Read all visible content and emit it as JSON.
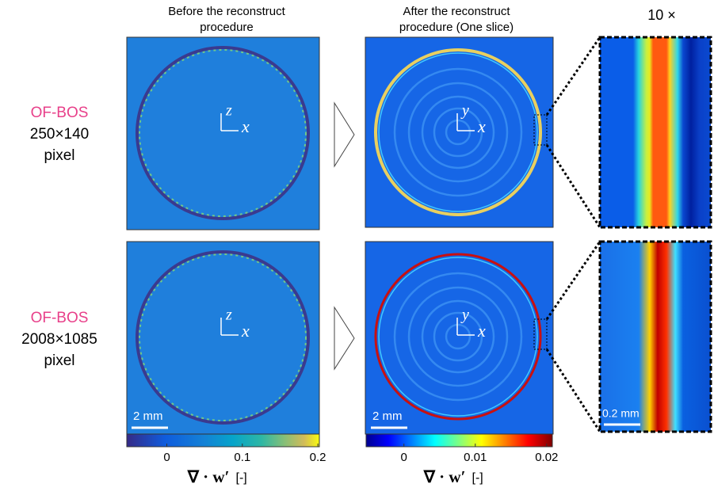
{
  "header": {
    "columns": [
      [
        "Before the reconstruct",
        "procedure"
      ],
      [
        "After the reconstruct",
        "procedure (One slice)"
      ]
    ],
    "zoom": "10 ×"
  },
  "rows": [
    {
      "method": "OF-BOS",
      "resolution": "250×140",
      "unit": "pixel"
    },
    {
      "method": "OF-BOS",
      "resolution": "2008×1085",
      "unit": "pixel"
    }
  ],
  "axes": {
    "before": [
      "z",
      "x"
    ],
    "after": [
      "y",
      "x"
    ]
  },
  "scale_bars": {
    "before": "2 mm",
    "after": "2 mm",
    "zoom": "0.2 mm"
  },
  "colorbars": [
    {
      "range": [
        -0.053,
        0.202
      ],
      "ticks": [
        0,
        0.1,
        0.2
      ],
      "label": "∇ · w′",
      "unit": "[-]"
    },
    {
      "range": [
        -0.0053,
        0.0208
      ],
      "ticks": [
        0,
        0.01,
        0.02
      ],
      "label": "∇ · w′",
      "unit": "[-]"
    }
  ]
}
